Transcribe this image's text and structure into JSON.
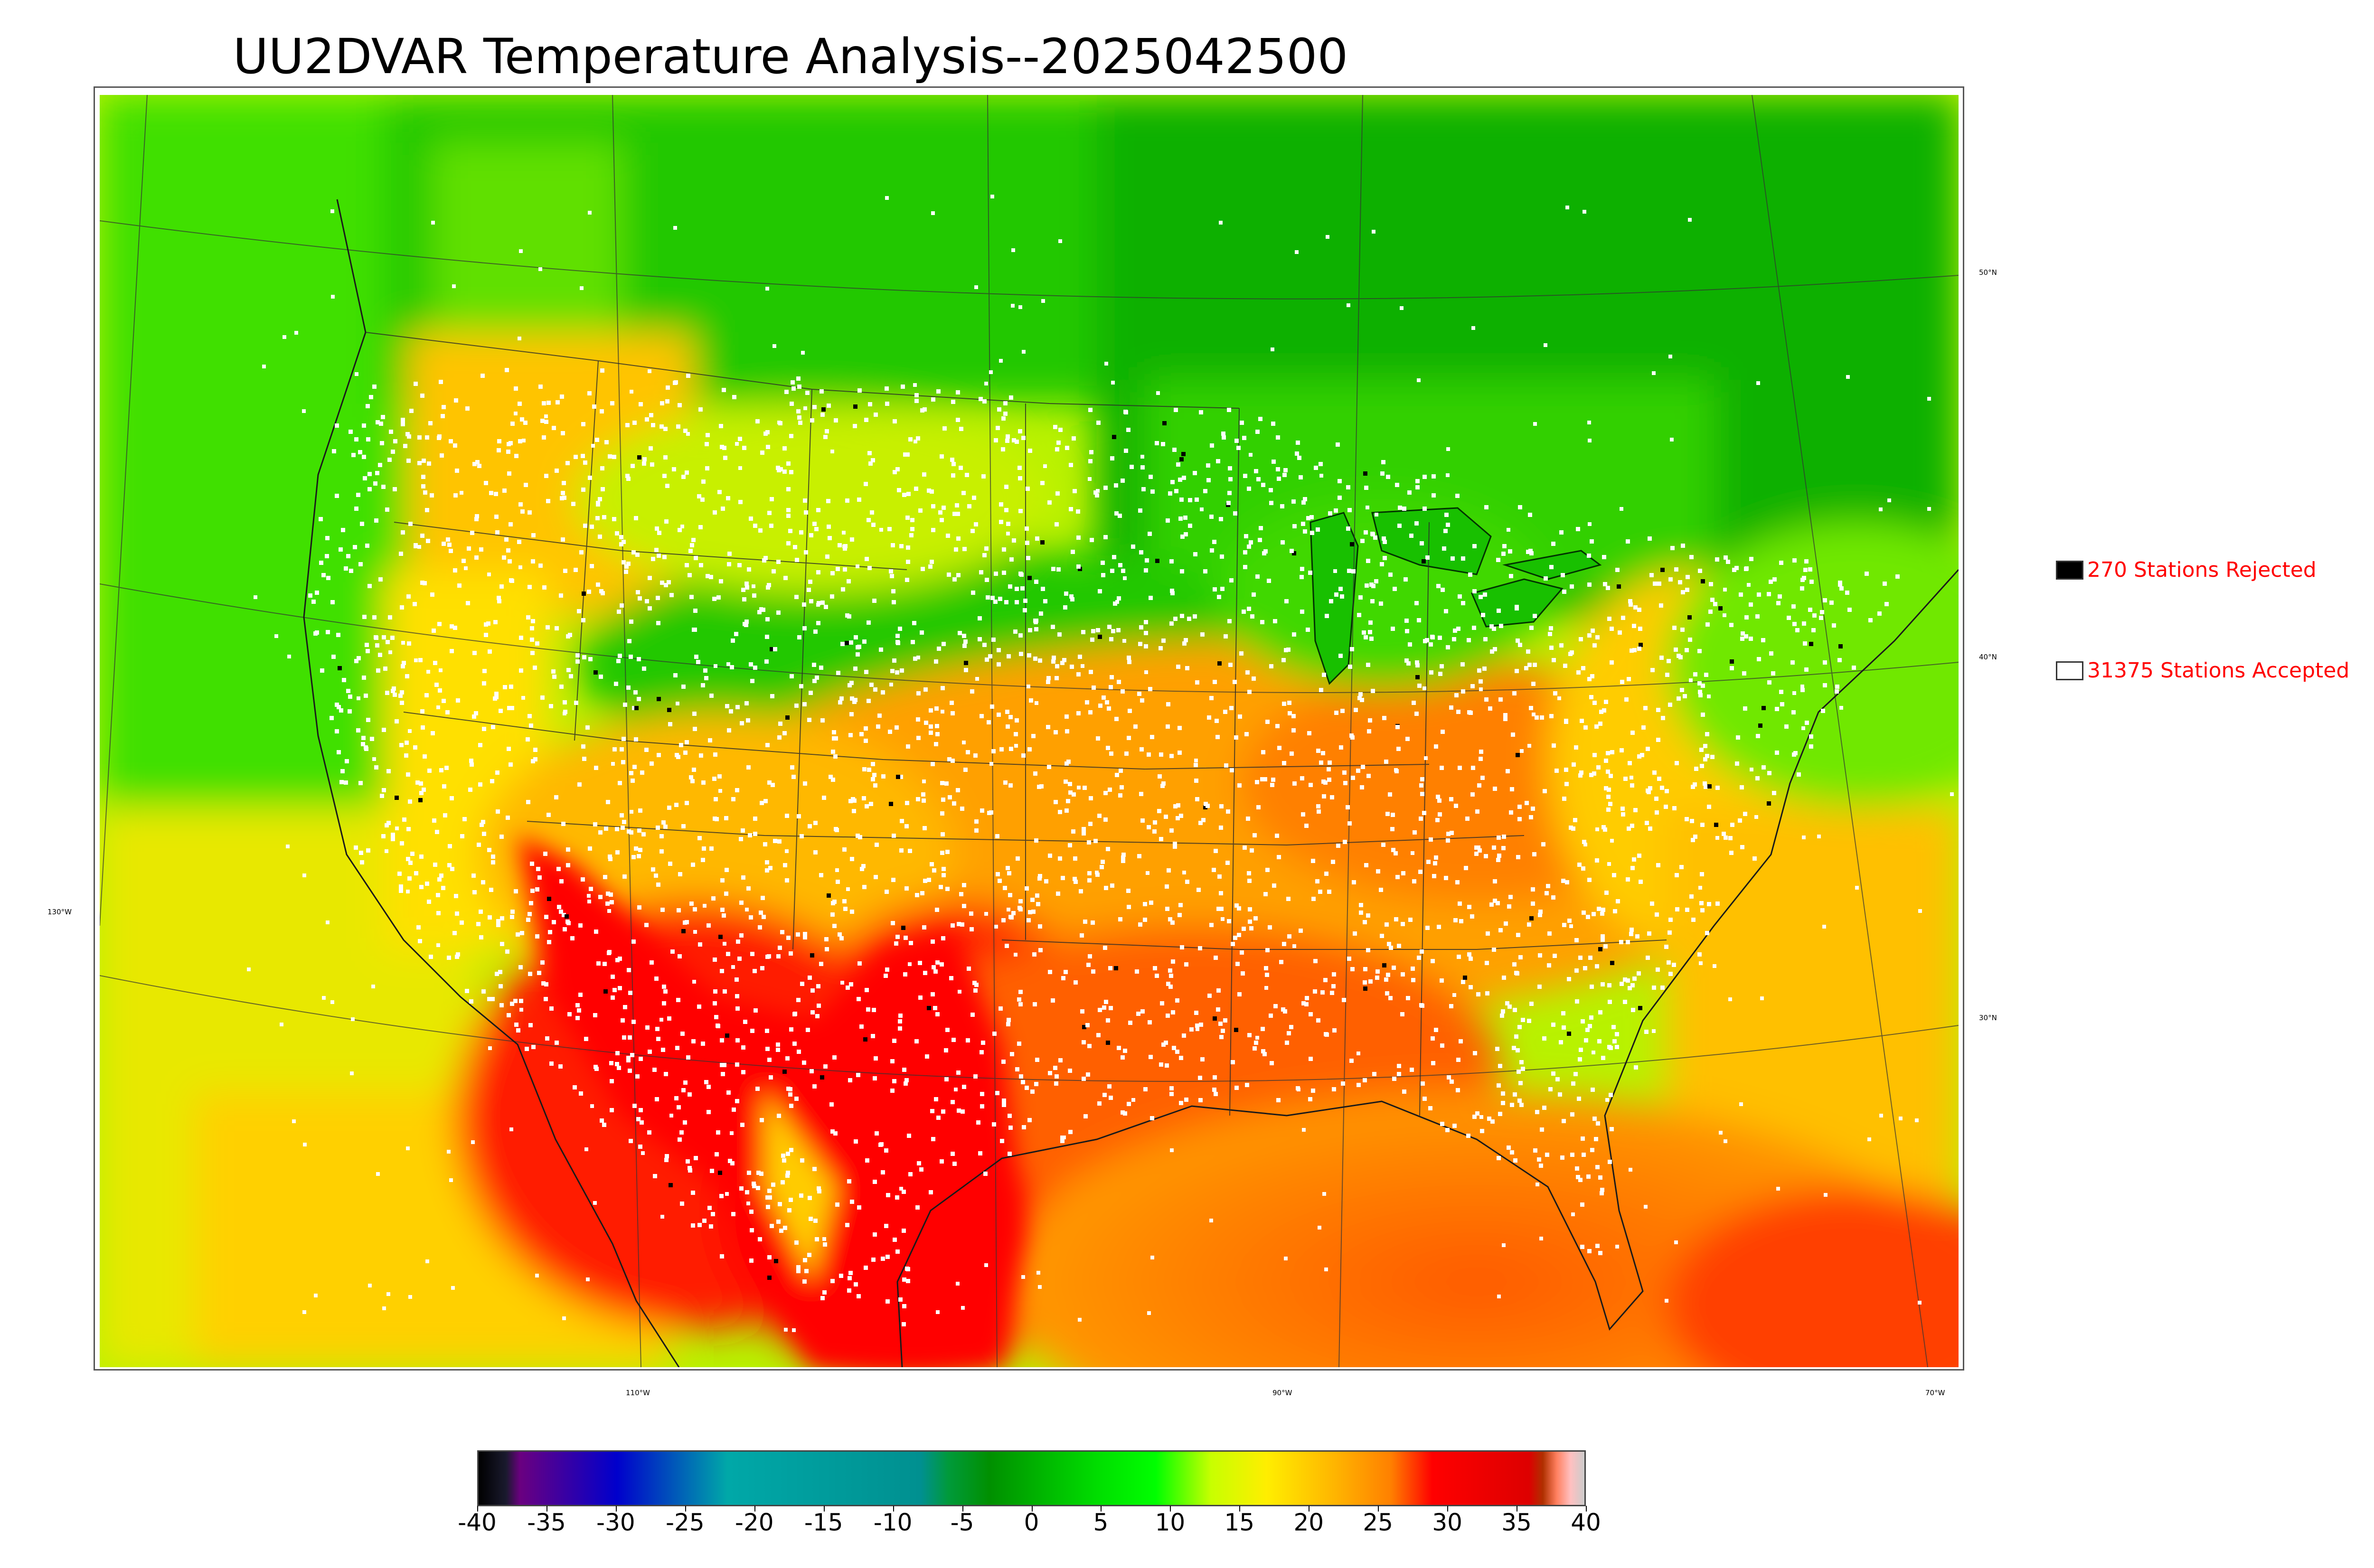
{
  "title": "UU2DVAR Temperature Analysis--2025042500",
  "map": {
    "lat_labels": [
      "50°N",
      "40°N",
      "30°N"
    ],
    "lon_labels": [
      "130°W",
      "110°W",
      "90°W",
      "70°W"
    ],
    "colors": {
      "cold": "#00a000",
      "mild": "#b8ff00",
      "warm": "#ffb000",
      "hot": "#ff2a00",
      "station_accepted": "#ffffff",
      "station_rejected": "#000000"
    }
  },
  "legend": {
    "rejected_label": "270 Stations Rejected",
    "accepted_label": "31375 Stations Accepted"
  },
  "colorbar": {
    "ticks": [
      "-40",
      "-35",
      "-30",
      "-25",
      "-20",
      "-15",
      "-10",
      "-5",
      "0",
      "5",
      "10",
      "15",
      "20",
      "25",
      "30",
      "35",
      "40"
    ],
    "range": [
      -40,
      40
    ],
    "stops": [
      {
        "value": -40,
        "color": "#000000"
      },
      {
        "value": -38,
        "color": "#1a1a2e"
      },
      {
        "value": -37,
        "color": "#6a0080"
      },
      {
        "value": -30,
        "color": "#0000cc"
      },
      {
        "value": -22,
        "color": "#00a8a8"
      },
      {
        "value": -8,
        "color": "#009090"
      },
      {
        "value": -6,
        "color": "#009a3a"
      },
      {
        "value": -3,
        "color": "#009000"
      },
      {
        "value": 5,
        "color": "#00e000"
      },
      {
        "value": 9,
        "color": "#00ff00"
      },
      {
        "value": 13,
        "color": "#c8ff00"
      },
      {
        "value": 17,
        "color": "#ffee00"
      },
      {
        "value": 22,
        "color": "#ffb400"
      },
      {
        "value": 26,
        "color": "#ff8000"
      },
      {
        "value": 29,
        "color": "#ff0000"
      },
      {
        "value": 36,
        "color": "#dd0000"
      },
      {
        "value": 37,
        "color": "#b03000"
      },
      {
        "value": 38,
        "color": "#ff8060"
      },
      {
        "value": 39,
        "color": "#ffc0c0"
      },
      {
        "value": 40,
        "color": "#cccccc"
      }
    ]
  }
}
